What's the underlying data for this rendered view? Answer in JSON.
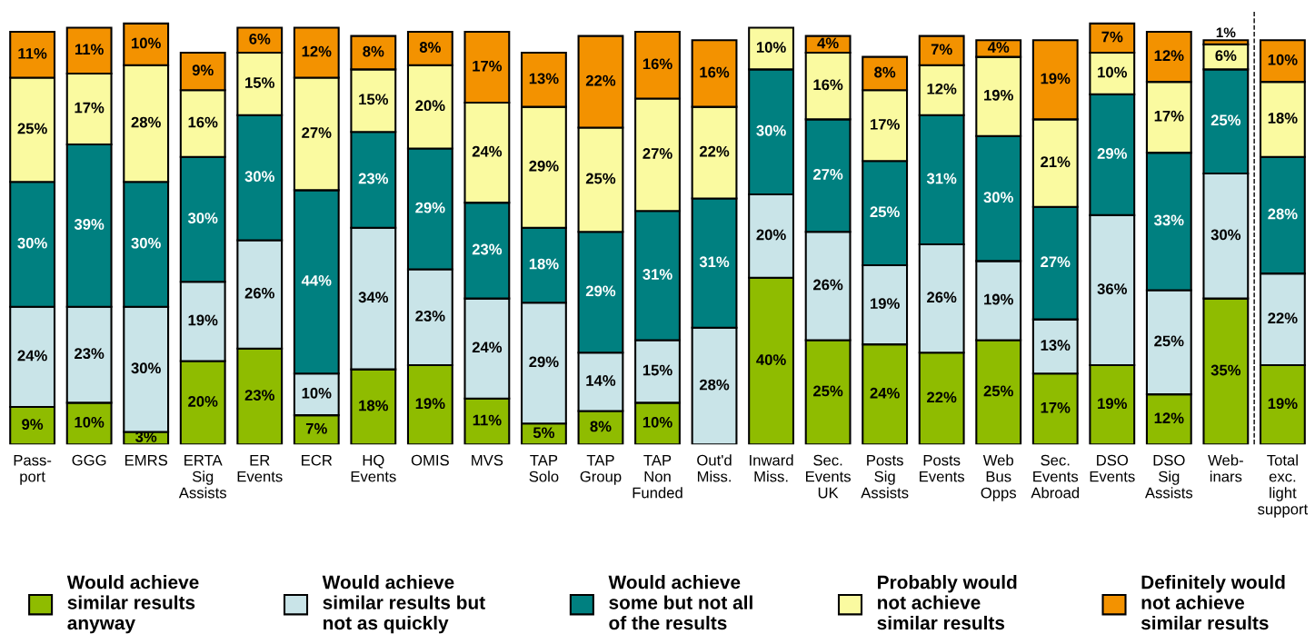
{
  "chart_data": {
    "type": "bar",
    "stacked": true,
    "legend": "bottom",
    "grid": false,
    "tick_labels": "x",
    "categories": [
      "Pass-\nport",
      "GGG",
      "EMRS",
      "ERTA\nSig\nAssists",
      "ER\nEvents",
      "ECR",
      "HQ\nEvents",
      "OMIS",
      "MVS",
      "TAP\nSolo",
      "TAP\nGroup",
      "TAP\nNon\nFunded",
      "Out'd\nMiss.",
      "Inward\nMiss.",
      "Sec.\nEvents\nUK",
      "Posts\nSig\nAssists",
      "Posts\nEvents",
      "Web\nBus\nOpps",
      "Sec.\nEvents\nAbroad",
      "DSO\nEvents",
      "DSO\nSig\nAssists",
      "Web-\ninars",
      "Total\nexc.\nlight\nsupport"
    ],
    "series": [
      {
        "name": "Would achieve\nsimilar results\nanyway",
        "color": "#8fbc00",
        "values": [
          9,
          10,
          3,
          20,
          23,
          7,
          18,
          19,
          11,
          5,
          8,
          10,
          null,
          40,
          25,
          24,
          22,
          25,
          17,
          19,
          12,
          35,
          19
        ],
        "value_labels": [
          "9%",
          "10%",
          "3%",
          "20%",
          "23%",
          "7%",
          "18%",
          "19%",
          "11%",
          "5%",
          "8%",
          "10%",
          null,
          "40%",
          "25%",
          "24%",
          "22%",
          "25%",
          "17%",
          "19%",
          "12%",
          "35%",
          "19%"
        ]
      },
      {
        "name": "Would achieve\nsimilar results but\nnot as quickly",
        "color": "#c9e4e8",
        "values": [
          24,
          23,
          30,
          19,
          26,
          10,
          34,
          23,
          24,
          29,
          14,
          15,
          28,
          20,
          26,
          19,
          26,
          19,
          13,
          36,
          25,
          30,
          22
        ],
        "value_labels": [
          "24%",
          "23%",
          "30%",
          "19%",
          "26%",
          "10%",
          "34%",
          "23%",
          "24%",
          "29%",
          "14%",
          "15%",
          "28%",
          "20%",
          "26%",
          "19%",
          "26%",
          "19%",
          "13%",
          "36%",
          "25%",
          "30%",
          "22%"
        ]
      },
      {
        "name": "Would achieve\nsome but not all\nof the results",
        "color": "#008080",
        "values": [
          30,
          39,
          30,
          30,
          30,
          44,
          23,
          29,
          23,
          18,
          29,
          31,
          31,
          30,
          27,
          25,
          31,
          30,
          27,
          29,
          33,
          25,
          28
        ],
        "value_labels": [
          "30%",
          "39%",
          "30%",
          "30%",
          "30%",
          "44%",
          "23%",
          "29%",
          "23%",
          "18%",
          "29%",
          "31%",
          "31%",
          "30%",
          "27%",
          "25%",
          "31%",
          "30%",
          "27%",
          "29%",
          "33%",
          "25%",
          "28%"
        ]
      },
      {
        "name": "Probably would\nnot achieve\nsimilar results",
        "color": "#fafaa0",
        "values": [
          25,
          17,
          28,
          16,
          15,
          27,
          15,
          20,
          24,
          29,
          25,
          27,
          22,
          10,
          16,
          17,
          12,
          19,
          21,
          10,
          17,
          6,
          18
        ],
        "value_labels": [
          "25%",
          "17%",
          "28%",
          "16%",
          "15%",
          "27%",
          "15%",
          "20%",
          "24%",
          "29%",
          "25%",
          "27%",
          "22%",
          "10%",
          "16%",
          "17%",
          "12%",
          "19%",
          "21%",
          "10%",
          "17%",
          "6%",
          "18%"
        ]
      },
      {
        "name": "Definitely would\nnot achieve\nsimilar results",
        "color": "#f39200",
        "values": [
          11,
          11,
          10,
          9,
          6,
          12,
          8,
          8,
          17,
          13,
          22,
          16,
          16,
          null,
          4,
          8,
          7,
          4,
          19,
          7,
          12,
          1,
          10
        ],
        "value_labels": [
          "11%",
          "11%",
          "10%",
          "9%",
          "6%",
          "12%",
          "8%",
          "8%",
          "17%",
          "13%",
          "22%",
          "16%",
          "16%",
          null,
          "4%",
          "8%",
          "7%",
          "4%",
          "19%",
          "7%",
          "12%",
          "1%",
          "10%"
        ]
      }
    ]
  }
}
